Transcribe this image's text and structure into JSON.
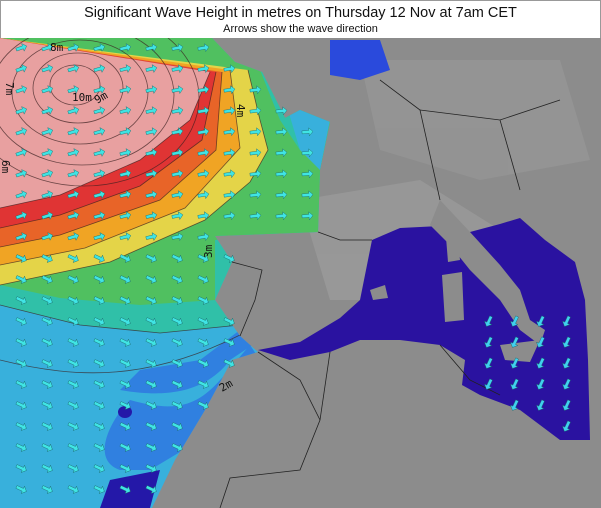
{
  "header": {
    "title": "Significant Wave Height in metres on Thursday 12 Nov at 7am CET",
    "subtitle": "Arrows show the wave direction"
  },
  "map": {
    "contour_labels": [
      "8m",
      "10m",
      "9m",
      "7m",
      "6m",
      "4m",
      "3m",
      "2m"
    ],
    "colors": {
      "land": "#8c8c8c",
      "height_7m_plus": "#e8a0a0",
      "height_6m": "#e03434",
      "height_5m": "#e86428",
      "height_4_5m": "#f0a424",
      "height_4m": "#e4d448",
      "height_3m": "#50c060",
      "height_2_5m": "#30c0a8",
      "height_2m": "#38b0dc",
      "height_1m": "#3080e0",
      "height_low": "#2418a8",
      "mediterranean": "#2a12a0",
      "arrow": "#40e4e4",
      "arrow_med": "#40d0f0"
    }
  }
}
